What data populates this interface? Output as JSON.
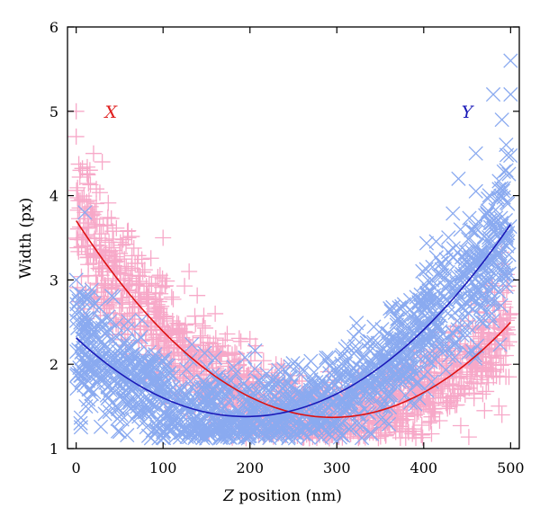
{
  "chart_data": {
    "type": "scatter",
    "title": "",
    "xlabel_var": "Z",
    "xlabel_rest": " position (nm)",
    "ylabel": "Width (px)",
    "xlim": [
      -10,
      510
    ],
    "ylim": [
      1,
      6
    ],
    "x_ticks": [
      0,
      100,
      200,
      300,
      400,
      500
    ],
    "y_ticks": [
      1,
      2,
      3,
      4,
      5,
      6
    ],
    "grid": false,
    "annotations": [
      {
        "text": "X",
        "x": 40,
        "y": 5.0,
        "color": "#e02020"
      },
      {
        "text": "Y",
        "x": 450,
        "y": 5.0,
        "color": "#1a1ab8"
      }
    ],
    "series": [
      {
        "name": "X",
        "marker": "plus",
        "marker_color": "#f7a8c8",
        "fit_color": "#dd1111",
        "fit": {
          "a": 2.68e-05,
          "vertex_x": 295,
          "vertex_y": 1.37
        },
        "scatter_spread": 0.62,
        "points": [
          [
            0,
            5.0
          ],
          [
            0,
            4.7
          ],
          [
            5,
            4.3
          ],
          [
            20,
            4.5
          ],
          [
            30,
            4.4
          ],
          [
            10,
            3.8
          ],
          [
            60,
            3.5
          ],
          [
            100,
            3.5
          ],
          [
            130,
            3.1
          ],
          [
            160,
            2.6
          ],
          [
            200,
            2.3
          ],
          [
            230,
            2.0
          ],
          [
            260,
            1.8
          ],
          [
            300,
            1.6
          ],
          [
            350,
            1.55
          ],
          [
            400,
            1.7
          ],
          [
            450,
            2.0
          ],
          [
            480,
            2.5
          ],
          [
            500,
            2.6
          ],
          [
            490,
            1.4
          ],
          [
            470,
            1.45
          ]
        ]
      },
      {
        "name": "Y",
        "marker": "cross",
        "marker_color": "#8aaaf0",
        "fit_color": "#1a1ab8",
        "fit": {
          "a": 2.45e-05,
          "vertex_x": 195,
          "vertex_y": 1.38
        },
        "scatter_spread": 0.68,
        "points": [
          [
            10,
            3.8
          ],
          [
            0,
            3.0
          ],
          [
            5,
            1.3
          ],
          [
            50,
            1.2
          ],
          [
            100,
            1.2
          ],
          [
            150,
            1.2
          ],
          [
            200,
            1.15
          ],
          [
            250,
            1.2
          ],
          [
            300,
            1.3
          ],
          [
            350,
            1.5
          ],
          [
            400,
            2.2
          ],
          [
            420,
            3.2
          ],
          [
            440,
            4.2
          ],
          [
            460,
            4.5
          ],
          [
            480,
            5.2
          ],
          [
            490,
            4.9
          ],
          [
            500,
            5.6
          ],
          [
            500,
            5.2
          ],
          [
            495,
            4.3
          ]
        ]
      }
    ]
  }
}
